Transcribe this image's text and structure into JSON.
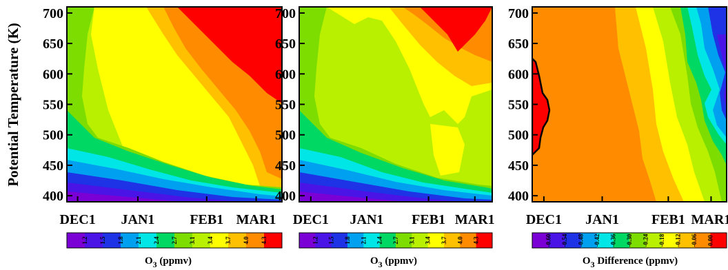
{
  "chart_data": [
    {
      "type": "heatmap",
      "panel": "left",
      "ylabel": "Potential Temperature (K)",
      "ylim": [
        390,
        710
      ],
      "y_ticks": [
        "400",
        "450",
        "500",
        "550",
        "600",
        "650",
        "700"
      ],
      "x_ticks": [
        "DEC1",
        "JAN1",
        "FEB1",
        "MAR1"
      ],
      "colorbar_levels": [
        "1.2",
        "1.5",
        "1.8",
        "2.1",
        "2.4",
        "2.7",
        "3.1",
        "3.4",
        "3.7",
        "4.0",
        "4.3"
      ],
      "colorbar_colors": [
        "#7b00d6",
        "#4b14e6",
        "#1e32e6",
        "#00a0f0",
        "#00e6e6",
        "#00d864",
        "#7ddc00",
        "#b9f000",
        "#ffff00",
        "#ffc000",
        "#ff8c00",
        "#ff0000"
      ],
      "colorbar_label_main": "O",
      "colorbar_label_sub": "3",
      "colorbar_label_unit": " (ppmv)"
    },
    {
      "type": "heatmap",
      "panel": "middle",
      "ylim": [
        390,
        710
      ],
      "y_ticks": [
        "400",
        "450",
        "500",
        "550",
        "600",
        "650",
        "700"
      ],
      "x_ticks": [
        "DEC1",
        "JAN1",
        "FEB1",
        "MAR1"
      ],
      "colorbar_levels": [
        "1.2",
        "1.5",
        "1.8",
        "2.1",
        "2.4",
        "2.7",
        "3.1",
        "3.4",
        "3.7",
        "4.0",
        "4.3"
      ],
      "colorbar_colors": [
        "#7b00d6",
        "#4b14e6",
        "#1e32e6",
        "#00a0f0",
        "#00e6e6",
        "#00d864",
        "#7ddc00",
        "#b9f000",
        "#ffff00",
        "#ffc000",
        "#ff8c00",
        "#ff0000"
      ],
      "colorbar_label_main": "O",
      "colorbar_label_sub": "3",
      "colorbar_label_unit": " (ppmv)"
    },
    {
      "type": "heatmap",
      "panel": "right",
      "ylim": [
        390,
        710
      ],
      "y_ticks": [
        "400",
        "450",
        "500",
        "550",
        "600",
        "650",
        "700"
      ],
      "x_ticks": [
        "DEC1",
        "JAN1",
        "FEB1",
        "MAR1"
      ],
      "colorbar_levels": [
        "-0.60",
        "-0.54",
        "-0.48",
        "-0.42",
        "-0.36",
        "-0.30",
        "-0.24",
        "-0.18",
        "-0.12",
        "-0.06",
        "0.00"
      ],
      "colorbar_colors": [
        "#7b00d6",
        "#4b14e6",
        "#1e32e6",
        "#00a0f0",
        "#00e6e6",
        "#00d864",
        "#7ddc00",
        "#b9f000",
        "#ffff00",
        "#ffc000",
        "#ff8c00",
        "#ff0000"
      ],
      "colorbar_label_main": "O",
      "colorbar_label_sub": "3",
      "colorbar_label_unit": " Difference (ppmv)"
    }
  ]
}
